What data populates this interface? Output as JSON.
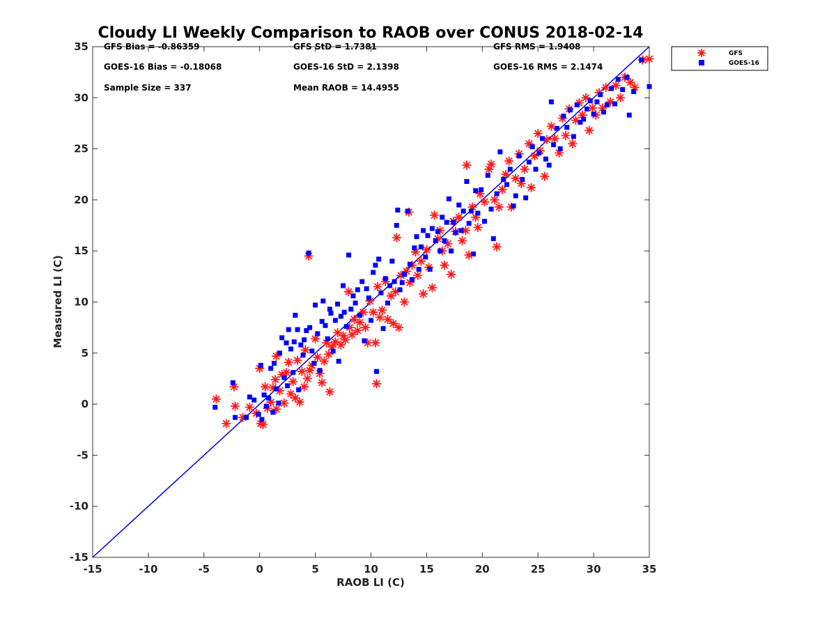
{
  "chart_data": {
    "type": "scatter",
    "title": "Cloudy LI Weekly Comparison to RAOB over CONUS 2018-02-14",
    "xlabel": "RAOB LI (C)",
    "ylabel": "Measured LI (C)",
    "xlim": [
      -15,
      35
    ],
    "ylim": [
      -15,
      35
    ],
    "xticks": [
      "-15",
      "-10",
      "-5",
      "0",
      "5",
      "10",
      "15",
      "20",
      "25",
      "30",
      "35"
    ],
    "yticks": [
      "-15",
      "-10",
      "-5",
      "0",
      "5",
      "10",
      "15",
      "20",
      "25",
      "30",
      "35"
    ],
    "grid": false,
    "legend_position": "top-right outside",
    "stats": [
      "GFS Bias = -0.86359",
      "GFS StD = 1.7381",
      "GFS RMS = 1.9408",
      "GOES-16 Bias = -0.18068",
      "GOES-16 StD = 2.1398",
      "GOES-16 RMS = 2.1474",
      "Sample Size = 337",
      "Mean RAOB = 14.4955"
    ],
    "reference_line": {
      "x": [
        -15,
        35
      ],
      "y": [
        -15,
        35
      ],
      "color": "#0000dd"
    },
    "series": [
      {
        "name": "GFS",
        "marker": "asterisk",
        "color": "#ff1a1a",
        "points": [
          [
            -3.9,
            0.5
          ],
          [
            -3.0,
            -1.9
          ],
          [
            -2.3,
            1.7
          ],
          [
            -2.2,
            -0.2
          ],
          [
            -1.5,
            -1.3
          ],
          [
            -0.9,
            -0.3
          ],
          [
            -0.3,
            -0.9
          ],
          [
            0.0,
            3.5
          ],
          [
            0.1,
            -1.9
          ],
          [
            0.3,
            -2.0
          ],
          [
            0.5,
            1.7
          ],
          [
            0.7,
            -0.4
          ],
          [
            1.0,
            0.2
          ],
          [
            1.2,
            1.6
          ],
          [
            1.4,
            2.4
          ],
          [
            1.5,
            -0.5
          ],
          [
            1.5,
            4.7
          ],
          [
            1.8,
            1.3
          ],
          [
            2.0,
            2.9
          ],
          [
            2.2,
            0.1
          ],
          [
            2.4,
            3.1
          ],
          [
            2.6,
            4.1
          ],
          [
            2.8,
            1.0
          ],
          [
            3.0,
            2.2
          ],
          [
            3.2,
            0.6
          ],
          [
            3.4,
            4.3
          ],
          [
            3.6,
            0.2
          ],
          [
            3.8,
            3.2
          ],
          [
            4.0,
            1.7
          ],
          [
            4.1,
            5.3
          ],
          [
            4.3,
            2.5
          ],
          [
            4.4,
            14.5
          ],
          [
            4.5,
            3.3
          ],
          [
            4.7,
            3.8
          ],
          [
            5.0,
            6.4
          ],
          [
            5.2,
            4.6
          ],
          [
            5.4,
            3.0
          ],
          [
            5.6,
            2.1
          ],
          [
            5.8,
            4.2
          ],
          [
            6.0,
            6.0
          ],
          [
            6.2,
            4.9
          ],
          [
            6.3,
            1.2
          ],
          [
            6.5,
            5.6
          ],
          [
            6.8,
            6.1
          ],
          [
            7.0,
            7.0
          ],
          [
            7.3,
            5.8
          ],
          [
            7.5,
            6.7
          ],
          [
            7.7,
            6.3
          ],
          [
            8.0,
            11.0
          ],
          [
            8.1,
            7.5
          ],
          [
            8.3,
            6.8
          ],
          [
            8.5,
            8.3
          ],
          [
            8.8,
            7.2
          ],
          [
            9.0,
            8.0
          ],
          [
            9.3,
            9.0
          ],
          [
            9.5,
            7.5
          ],
          [
            9.7,
            6.0
          ],
          [
            9.9,
            10.1
          ],
          [
            10.2,
            9.0
          ],
          [
            10.4,
            6.0
          ],
          [
            10.5,
            2.0
          ],
          [
            10.6,
            11.5
          ],
          [
            10.8,
            8.5
          ],
          [
            11.0,
            9.2
          ],
          [
            11.3,
            12.0
          ],
          [
            11.5,
            8.3
          ],
          [
            11.8,
            10.6
          ],
          [
            12.0,
            7.9
          ],
          [
            12.2,
            11.0
          ],
          [
            12.3,
            16.3
          ],
          [
            12.5,
            7.5
          ],
          [
            12.7,
            12.6
          ],
          [
            13.0,
            10.0
          ],
          [
            13.2,
            13.0
          ],
          [
            13.4,
            18.8
          ],
          [
            13.5,
            11.9
          ],
          [
            13.7,
            13.6
          ],
          [
            14.0,
            14.9
          ],
          [
            14.2,
            12.6
          ],
          [
            14.5,
            14.0
          ],
          [
            14.7,
            10.8
          ],
          [
            15.0,
            15.1
          ],
          [
            15.2,
            13.4
          ],
          [
            15.5,
            11.4
          ],
          [
            15.7,
            18.5
          ],
          [
            16.0,
            16.2
          ],
          [
            16.2,
            17.0
          ],
          [
            16.4,
            15.0
          ],
          [
            16.6,
            13.6
          ],
          [
            16.9,
            15.7
          ],
          [
            17.2,
            12.7
          ],
          [
            17.4,
            17.9
          ],
          [
            17.6,
            16.9
          ],
          [
            17.9,
            18.3
          ],
          [
            18.2,
            16.0
          ],
          [
            18.5,
            17.0
          ],
          [
            18.6,
            23.4
          ],
          [
            18.8,
            14.6
          ],
          [
            19.1,
            19.3
          ],
          [
            19.4,
            18.3
          ],
          [
            19.6,
            17.3
          ],
          [
            19.8,
            20.6
          ],
          [
            20.2,
            19.8
          ],
          [
            20.6,
            23.0
          ],
          [
            20.8,
            23.5
          ],
          [
            21.1,
            20.0
          ],
          [
            21.3,
            15.4
          ],
          [
            21.5,
            19.3
          ],
          [
            21.8,
            21.0
          ],
          [
            22.1,
            22.5
          ],
          [
            22.4,
            23.8
          ],
          [
            22.6,
            19.3
          ],
          [
            23.0,
            22.1
          ],
          [
            23.3,
            24.5
          ],
          [
            23.5,
            21.6
          ],
          [
            23.8,
            23.0
          ],
          [
            24.2,
            25.5
          ],
          [
            24.4,
            21.2
          ],
          [
            24.7,
            24.3
          ],
          [
            25.0,
            26.5
          ],
          [
            25.2,
            24.8
          ],
          [
            25.6,
            22.3
          ],
          [
            25.8,
            25.9
          ],
          [
            26.2,
            27.2
          ],
          [
            26.5,
            26.0
          ],
          [
            26.9,
            24.6
          ],
          [
            27.2,
            28.0
          ],
          [
            27.5,
            26.3
          ],
          [
            27.8,
            28.9
          ],
          [
            28.1,
            25.5
          ],
          [
            28.4,
            27.8
          ],
          [
            28.7,
            29.5
          ],
          [
            29.0,
            28.3
          ],
          [
            29.3,
            30.0
          ],
          [
            29.6,
            26.8
          ],
          [
            29.9,
            29.0
          ],
          [
            30.2,
            28.3
          ],
          [
            30.5,
            30.5
          ],
          [
            30.8,
            29.0
          ],
          [
            31.1,
            31.0
          ],
          [
            31.5,
            29.6
          ],
          [
            32.0,
            31.2
          ],
          [
            32.4,
            30.0
          ],
          [
            32.8,
            32.0
          ],
          [
            33.3,
            31.5
          ],
          [
            33.7,
            31.0
          ],
          [
            34.4,
            33.7
          ],
          [
            35.0,
            33.8
          ]
        ]
      },
      {
        "name": "GOES-16",
        "marker": "square",
        "color": "#0000ff",
        "points": [
          [
            -4.0,
            -0.3
          ],
          [
            -2.4,
            2.1
          ],
          [
            -2.2,
            -1.3
          ],
          [
            -1.2,
            -1.3
          ],
          [
            -0.9,
            0.7
          ],
          [
            -0.5,
            0.4
          ],
          [
            -0.1,
            -1.0
          ],
          [
            0.1,
            3.8
          ],
          [
            0.2,
            -1.5
          ],
          [
            0.4,
            0.9
          ],
          [
            0.6,
            -0.2
          ],
          [
            0.8,
            0.6
          ],
          [
            1.0,
            3.5
          ],
          [
            1.2,
            -0.8
          ],
          [
            1.3,
            4.0
          ],
          [
            1.5,
            1.5
          ],
          [
            1.7,
            0.1
          ],
          [
            1.8,
            5.0
          ],
          [
            2.0,
            6.5
          ],
          [
            2.2,
            2.6
          ],
          [
            2.4,
            6.0
          ],
          [
            2.5,
            1.8
          ],
          [
            2.6,
            7.3
          ],
          [
            2.8,
            5.4
          ],
          [
            3.0,
            3.1
          ],
          [
            3.1,
            6.1
          ],
          [
            3.2,
            8.7
          ],
          [
            3.4,
            7.3
          ],
          [
            3.5,
            1.4
          ],
          [
            3.7,
            5.8
          ],
          [
            3.9,
            4.8
          ],
          [
            4.0,
            6.3
          ],
          [
            4.2,
            7.2
          ],
          [
            4.4,
            14.8
          ],
          [
            4.5,
            7.5
          ],
          [
            4.7,
            5.2
          ],
          [
            4.9,
            4.0
          ],
          [
            5.0,
            9.7
          ],
          [
            5.2,
            6.9
          ],
          [
            5.4,
            3.3
          ],
          [
            5.6,
            8.1
          ],
          [
            5.7,
            10.1
          ],
          [
            5.9,
            7.7
          ],
          [
            6.1,
            6.4
          ],
          [
            6.3,
            9.3
          ],
          [
            6.4,
            8.9
          ],
          [
            6.6,
            5.2
          ],
          [
            6.8,
            8.2
          ],
          [
            7.0,
            9.8
          ],
          [
            7.1,
            4.2
          ],
          [
            7.3,
            8.6
          ],
          [
            7.5,
            11.6
          ],
          [
            7.6,
            9.0
          ],
          [
            7.8,
            7.6
          ],
          [
            8.0,
            14.6
          ],
          [
            8.2,
            9.3
          ],
          [
            8.4,
            10.6
          ],
          [
            8.6,
            9.9
          ],
          [
            8.8,
            11.2
          ],
          [
            9.0,
            8.7
          ],
          [
            9.2,
            12.0
          ],
          [
            9.4,
            6.2
          ],
          [
            9.6,
            11.3
          ],
          [
            9.8,
            10.4
          ],
          [
            10.0,
            8.2
          ],
          [
            10.2,
            12.9
          ],
          [
            10.4,
            13.6
          ],
          [
            10.5,
            3.2
          ],
          [
            10.7,
            14.2
          ],
          [
            10.9,
            10.9
          ],
          [
            11.1,
            7.4
          ],
          [
            11.3,
            12.3
          ],
          [
            11.5,
            9.9
          ],
          [
            11.7,
            11.6
          ],
          [
            11.9,
            14.0
          ],
          [
            12.1,
            12.0
          ],
          [
            12.3,
            17.5
          ],
          [
            12.4,
            19.0
          ],
          [
            12.6,
            11.2
          ],
          [
            12.8,
            11.9
          ],
          [
            13.0,
            12.7
          ],
          [
            13.3,
            18.9
          ],
          [
            13.5,
            13.7
          ],
          [
            13.7,
            12.2
          ],
          [
            13.9,
            15.3
          ],
          [
            14.1,
            16.4
          ],
          [
            14.3,
            13.2
          ],
          [
            14.5,
            15.4
          ],
          [
            14.7,
            17.0
          ],
          [
            14.9,
            14.4
          ],
          [
            15.1,
            16.5
          ],
          [
            15.3,
            13.2
          ],
          [
            15.5,
            17.2
          ],
          [
            15.8,
            16.0
          ],
          [
            16.0,
            16.9
          ],
          [
            16.2,
            15.0
          ],
          [
            16.4,
            18.3
          ],
          [
            16.6,
            16.0
          ],
          [
            16.8,
            17.8
          ],
          [
            17.0,
            20.1
          ],
          [
            17.2,
            15.0
          ],
          [
            17.4,
            17.8
          ],
          [
            17.6,
            16.8
          ],
          [
            17.9,
            19.5
          ],
          [
            18.1,
            17.0
          ],
          [
            18.3,
            18.9
          ],
          [
            18.6,
            21.8
          ],
          [
            18.8,
            17.7
          ],
          [
            19.0,
            18.9
          ],
          [
            19.2,
            14.7
          ],
          [
            19.4,
            20.9
          ],
          [
            19.6,
            18.7
          ],
          [
            19.9,
            21.0
          ],
          [
            20.2,
            17.9
          ],
          [
            20.5,
            22.4
          ],
          [
            20.8,
            19.1
          ],
          [
            21.0,
            16.2
          ],
          [
            21.3,
            20.6
          ],
          [
            21.6,
            24.7
          ],
          [
            21.9,
            22.0
          ],
          [
            22.2,
            21.5
          ],
          [
            22.5,
            23.0
          ],
          [
            22.8,
            19.4
          ],
          [
            23.0,
            20.4
          ],
          [
            23.3,
            24.3
          ],
          [
            23.6,
            22.0
          ],
          [
            23.9,
            20.2
          ],
          [
            24.2,
            23.7
          ],
          [
            24.5,
            25.2
          ],
          [
            24.8,
            23.0
          ],
          [
            25.1,
            24.6
          ],
          [
            25.4,
            26.0
          ],
          [
            25.7,
            24.0
          ],
          [
            26.0,
            23.4
          ],
          [
            26.2,
            29.6
          ],
          [
            26.4,
            25.4
          ],
          [
            26.7,
            27.0
          ],
          [
            27.0,
            25.0
          ],
          [
            27.3,
            28.2
          ],
          [
            27.6,
            27.1
          ],
          [
            27.9,
            28.8
          ],
          [
            28.2,
            26.2
          ],
          [
            28.5,
            29.3
          ],
          [
            28.8,
            27.6
          ],
          [
            29.1,
            27.9
          ],
          [
            29.4,
            28.9
          ],
          [
            29.7,
            29.7
          ],
          [
            30.0,
            28.4
          ],
          [
            30.3,
            29.6
          ],
          [
            30.6,
            30.3
          ],
          [
            30.9,
            28.6
          ],
          [
            31.2,
            29.3
          ],
          [
            31.6,
            30.9
          ],
          [
            31.9,
            29.4
          ],
          [
            32.2,
            31.8
          ],
          [
            32.6,
            30.8
          ],
          [
            33.0,
            32.0
          ],
          [
            33.2,
            28.3
          ],
          [
            33.6,
            30.6
          ],
          [
            34.3,
            33.7
          ],
          [
            35.0,
            31.1
          ]
        ]
      }
    ]
  }
}
